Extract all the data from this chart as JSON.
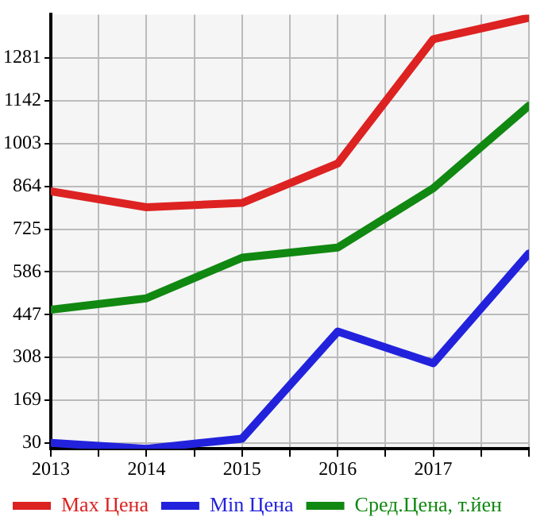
{
  "chart_data": {
    "type": "line",
    "x": [
      2013,
      2014,
      2015,
      2016,
      2017,
      2018
    ],
    "xlim": [
      2013,
      2018
    ],
    "xticks": [
      2013,
      {
        "value": 2013.5,
        "label": null
      },
      2014,
      {
        "value": 2014.5,
        "label": null
      },
      2015,
      {
        "value": 2015.5,
        "label": null
      },
      2016,
      {
        "value": 2016.5,
        "label": null
      },
      2017,
      {
        "value": 2017.5,
        "label": null
      },
      {
        "value": 2018,
        "label": null
      }
    ],
    "ylim": [
      11,
      1422
    ],
    "yticks": [
      30,
      169,
      308,
      447,
      586,
      725,
      864,
      1003,
      1142,
      1281
    ],
    "grid": true,
    "legend": "bottom",
    "marker": "none",
    "line_style": "solid",
    "series": [
      {
        "name": "Max Цена",
        "color": "#dd2222",
        "values": [
          848,
          796,
          810,
          938,
          1342,
          1412
        ]
      },
      {
        "name": "Min Цена",
        "color": "#2222dd",
        "values": [
          30,
          11,
          44,
          392,
          289,
          646
        ]
      },
      {
        "name": "Сред.Цена, т.йен",
        "color": "#118811",
        "values": [
          463,
          500,
          632,
          665,
          858,
          1126
        ]
      }
    ]
  }
}
